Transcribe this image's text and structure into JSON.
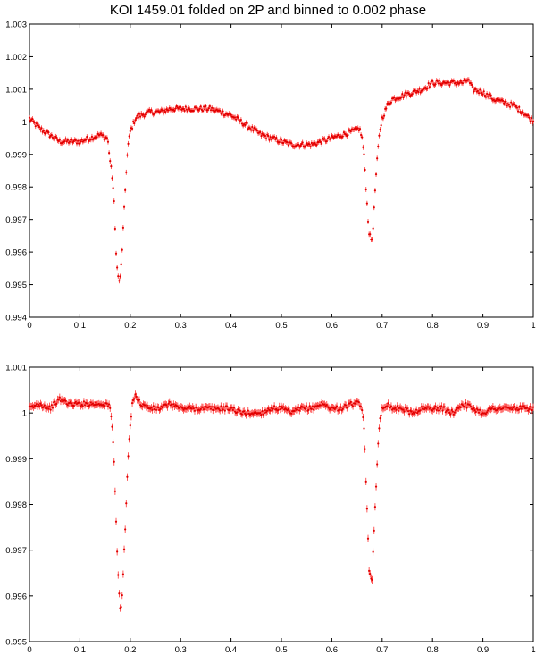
{
  "title": "KOI 1459.01 folded on 2P and binned to 0.002 phase",
  "colors": {
    "points": "#e00000",
    "errorbars": "#ff3030",
    "axes": "#000000"
  },
  "chart_data": [
    {
      "type": "scatter",
      "title": "KOI 1459.01 folded on 2P and binned to 0.002 phase",
      "xlabel": "",
      "ylabel": "",
      "xlim": [
        0,
        1
      ],
      "ylim": [
        0.994,
        1.003
      ],
      "grid": false,
      "x_ticks": [
        "0",
        "0.1",
        "0.2",
        "0.3",
        "0.4",
        "0.5",
        "0.6",
        "0.7",
        "0.8",
        "0.9",
        "1"
      ],
      "y_ticks": [
        "0.994",
        "0.995",
        "0.996",
        "0.997",
        "0.998",
        "0.999",
        "1",
        "1.001",
        "1.002",
        "1.003"
      ],
      "bin_width": 0.002,
      "error_bar": 8e-05,
      "x": [
        0.0,
        0.02,
        0.04,
        0.06,
        0.08,
        0.1,
        0.12,
        0.14,
        0.155,
        0.16,
        0.165,
        0.168,
        0.171,
        0.174,
        0.177,
        0.18,
        0.183,
        0.186,
        0.189,
        0.192,
        0.195,
        0.2,
        0.21,
        0.22,
        0.24,
        0.26,
        0.28,
        0.3,
        0.32,
        0.34,
        0.36,
        0.38,
        0.4,
        0.42,
        0.44,
        0.46,
        0.48,
        0.5,
        0.52,
        0.54,
        0.56,
        0.58,
        0.6,
        0.62,
        0.64,
        0.655,
        0.66,
        0.665,
        0.668,
        0.671,
        0.674,
        0.677,
        0.68,
        0.683,
        0.686,
        0.689,
        0.692,
        0.695,
        0.7,
        0.71,
        0.72,
        0.74,
        0.76,
        0.78,
        0.8,
        0.82,
        0.84,
        0.86,
        0.87,
        0.88,
        0.9,
        0.92,
        0.94,
        0.96,
        0.98,
        1.0
      ],
      "y": [
        1.0001,
        0.9998,
        0.9996,
        0.9994,
        0.9994,
        0.9994,
        0.9995,
        0.9996,
        0.9995,
        0.9988,
        0.9982,
        0.9975,
        0.9963,
        0.9955,
        0.9951,
        0.9952,
        0.9958,
        0.9967,
        0.9976,
        0.9985,
        0.9992,
        0.9997,
        1.0001,
        1.0002,
        1.0003,
        1.0003,
        1.0004,
        1.0004,
        1.0004,
        1.0004,
        1.0004,
        1.0003,
        1.0002,
        1.0,
        0.9998,
        0.9996,
        0.9995,
        0.9994,
        0.9993,
        0.9993,
        0.9993,
        0.9994,
        0.9995,
        0.9996,
        0.9997,
        0.9998,
        0.9995,
        0.9988,
        0.998,
        0.9972,
        0.9966,
        0.9964,
        0.9964,
        0.997,
        0.9979,
        0.9986,
        0.9992,
        0.9997,
        1.0001,
        1.0005,
        1.0007,
        1.0008,
        1.0009,
        1.001,
        1.0012,
        1.0012,
        1.0012,
        1.0012,
        1.0013,
        1.001,
        1.0009,
        1.0007,
        1.0006,
        1.0005,
        1.0003,
        1.0
      ]
    },
    {
      "type": "scatter",
      "title": "",
      "xlabel": "",
      "ylabel": "",
      "xlim": [
        0,
        1
      ],
      "ylim": [
        0.995,
        1.001
      ],
      "grid": false,
      "x_ticks": [
        "0",
        "0.1",
        "0.2",
        "0.3",
        "0.4",
        "0.5",
        "0.6",
        "0.7",
        "0.8",
        "0.9",
        "1"
      ],
      "y_ticks": [
        "0.995",
        "0.996",
        "0.997",
        "0.998",
        "0.999",
        "1",
        "1.001"
      ],
      "bin_width": 0.002,
      "error_bar": 8e-05,
      "x": [
        0.0,
        0.02,
        0.04,
        0.06,
        0.08,
        0.1,
        0.12,
        0.14,
        0.155,
        0.16,
        0.165,
        0.168,
        0.171,
        0.174,
        0.177,
        0.18,
        0.183,
        0.186,
        0.189,
        0.192,
        0.195,
        0.2,
        0.205,
        0.21,
        0.22,
        0.24,
        0.26,
        0.28,
        0.3,
        0.32,
        0.34,
        0.36,
        0.38,
        0.4,
        0.42,
        0.44,
        0.46,
        0.48,
        0.5,
        0.52,
        0.54,
        0.56,
        0.58,
        0.6,
        0.62,
        0.64,
        0.655,
        0.66,
        0.665,
        0.668,
        0.671,
        0.674,
        0.677,
        0.68,
        0.683,
        0.686,
        0.689,
        0.692,
        0.695,
        0.7,
        0.71,
        0.72,
        0.74,
        0.76,
        0.78,
        0.8,
        0.82,
        0.84,
        0.86,
        0.88,
        0.9,
        0.92,
        0.94,
        0.96,
        0.98,
        1.0
      ],
      "y": [
        1.0001,
        1.0002,
        1.0001,
        1.0003,
        1.0002,
        1.0002,
        1.0002,
        1.0002,
        1.0002,
        1.0001,
        0.9996,
        0.9989,
        0.998,
        0.997,
        0.9962,
        0.9957,
        0.9958,
        0.9965,
        0.9972,
        0.998,
        0.9989,
        0.9997,
        1.0003,
        1.0004,
        1.0002,
        1.0001,
        1.0001,
        1.0002,
        1.0001,
        1.0001,
        1.0001,
        1.0001,
        1.0001,
        1.0001,
        1.0,
        1.0,
        1.0,
        1.0001,
        1.0001,
        1.0,
        1.0001,
        1.0001,
        1.0002,
        1.0001,
        1.0001,
        1.0002,
        1.0002,
        1.0001,
        0.9995,
        0.9985,
        0.9976,
        0.9966,
        0.9964,
        0.9964,
        0.9972,
        0.998,
        0.9986,
        0.9993,
        0.9998,
        1.0001,
        1.0002,
        1.0001,
        1.0001,
        1.0,
        1.0001,
        1.0001,
        1.0001,
        1.0,
        1.0002,
        1.0001,
        1.0,
        1.0001,
        1.0001,
        1.0001,
        1.0001,
        1.0001
      ]
    }
  ]
}
